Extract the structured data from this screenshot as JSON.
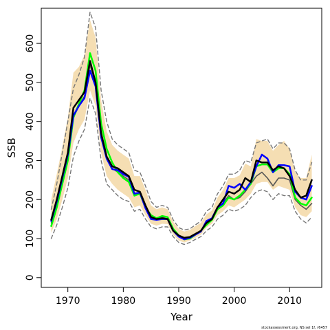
{
  "chart_data": {
    "type": "line",
    "xlabel": "Year",
    "ylabel": "SSB",
    "xlim": [
      1965.2,
      2015.8
    ],
    "ylim": [
      -25,
      690
    ],
    "x_ticks": [
      1970,
      1980,
      1990,
      2000,
      2010
    ],
    "y_ticks": [
      0,
      100,
      200,
      300,
      400,
      500,
      600
    ],
    "grid": false,
    "legend": "none",
    "credit": "stockassessment.org, NS sel 1f, r6457",
    "colors": {
      "band": "#f5deb3",
      "black": "#000000",
      "green": "#00ff00",
      "blue": "#0000ff",
      "grey": "#555555",
      "bounds": "#777777"
    },
    "x": [
      1967,
      1968,
      1969,
      1970,
      1971,
      1972,
      1973,
      1974,
      1975,
      1976,
      1977,
      1978,
      1979,
      1980,
      1981,
      1982,
      1983,
      1984,
      1985,
      1986,
      1987,
      1988,
      1989,
      1990,
      1991,
      1992,
      1993,
      1994,
      1995,
      1996,
      1997,
      1998,
      1999,
      2000,
      2001,
      2002,
      2003,
      2004,
      2005,
      2006,
      2007,
      2008,
      2009,
      2010,
      2011,
      2012,
      2013,
      2014
    ],
    "series": [
      {
        "color": "black",
        "style": "solid",
        "values": [
          148,
          200,
          260,
          320,
          435,
          455,
          475,
          555,
          500,
          370,
          310,
          285,
          280,
          270,
          260,
          225,
          220,
          185,
          155,
          150,
          152,
          150,
          120,
          108,
          102,
          104,
          112,
          120,
          140,
          150,
          180,
          200,
          220,
          215,
          225,
          255,
          245,
          300,
          295,
          295,
          275,
          285,
          280,
          260,
          225,
          205,
          210,
          250
        ]
      },
      {
        "color": "green",
        "style": "solid",
        "values": [
          132,
          180,
          240,
          300,
          410,
          445,
          480,
          575,
          530,
          395,
          330,
          295,
          270,
          255,
          245,
          210,
          215,
          180,
          160,
          152,
          158,
          155,
          125,
          108,
          98,
          100,
          110,
          120,
          135,
          148,
          175,
          185,
          205,
          200,
          210,
          225,
          240,
          285,
          290,
          290,
          270,
          280,
          280,
          265,
          205,
          190,
          185,
          205
        ]
      },
      {
        "color": "blue",
        "style": "solid",
        "values": [
          145,
          195,
          255,
          315,
          415,
          440,
          460,
          530,
          490,
          360,
          305,
          278,
          275,
          265,
          258,
          215,
          218,
          178,
          150,
          148,
          150,
          150,
          120,
          105,
          98,
          102,
          110,
          118,
          145,
          152,
          180,
          190,
          235,
          230,
          240,
          225,
          245,
          285,
          315,
          305,
          270,
          288,
          288,
          285,
          220,
          205,
          200,
          235
        ]
      },
      {
        "color": "grey",
        "style": "solid",
        "values": [
          140,
          190,
          245,
          305,
          410,
          440,
          465,
          545,
          495,
          365,
          305,
          280,
          270,
          260,
          250,
          215,
          215,
          180,
          155,
          150,
          155,
          150,
          120,
          105,
          100,
          102,
          110,
          118,
          138,
          150,
          175,
          190,
          210,
          200,
          205,
          220,
          240,
          260,
          270,
          255,
          235,
          255,
          255,
          250,
          200,
          185,
          175,
          190
        ]
      },
      {
        "color": "bounds",
        "style": "dashed",
        "values": [
          100,
          135,
          180,
          230,
          310,
          350,
          380,
          460,
          420,
          300,
          240,
          225,
          210,
          200,
          195,
          170,
          175,
          150,
          130,
          125,
          130,
          130,
          105,
          90,
          85,
          90,
          98,
          105,
          120,
          130,
          150,
          160,
          175,
          170,
          175,
          185,
          205,
          220,
          225,
          220,
          200,
          215,
          210,
          210,
          170,
          150,
          140,
          155
        ]
      },
      {
        "color": "bounds",
        "style": "dashed",
        "values": [
          175,
          240,
          320,
          400,
          485,
          520,
          565,
          680,
          640,
          480,
          400,
          355,
          340,
          330,
          320,
          275,
          270,
          235,
          195,
          180,
          185,
          180,
          148,
          128,
          122,
          125,
          135,
          145,
          170,
          180,
          215,
          235,
          265,
          265,
          275,
          300,
          295,
          345,
          350,
          355,
          330,
          345,
          345,
          330,
          275,
          250,
          250,
          295
        ]
      }
    ],
    "band": {
      "lower": [
        115,
        150,
        200,
        255,
        345,
        380,
        405,
        480,
        440,
        320,
        260,
        240,
        225,
        215,
        205,
        180,
        185,
        160,
        138,
        133,
        138,
        137,
        110,
        95,
        90,
        95,
        102,
        110,
        128,
        138,
        160,
        170,
        185,
        180,
        190,
        200,
        215,
        240,
        245,
        245,
        225,
        235,
        230,
        225,
        180,
        160,
        155,
        170
      ],
      "upper": [
        200,
        265,
        335,
        410,
        525,
        540,
        570,
        660,
        615,
        455,
        375,
        340,
        325,
        315,
        305,
        260,
        260,
        225,
        185,
        175,
        180,
        175,
        143,
        125,
        118,
        122,
        132,
        140,
        162,
        172,
        205,
        225,
        255,
        255,
        262,
        292,
        285,
        355,
        350,
        350,
        325,
        340,
        350,
        330,
        270,
        255,
        255,
        315
      ]
    }
  }
}
